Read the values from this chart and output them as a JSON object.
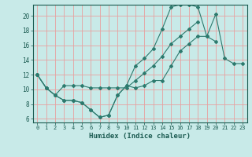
{
  "title": "",
  "xlabel": "Humidex (Indice chaleur)",
  "ylabel": "",
  "background_color": "#c8eae8",
  "grid_color": "#e8a0a0",
  "line_color": "#2d7a6e",
  "xlim": [
    -0.5,
    23.5
  ],
  "ylim": [
    5.5,
    21.5
  ],
  "xticks": [
    0,
    1,
    2,
    3,
    4,
    5,
    6,
    7,
    8,
    9,
    10,
    11,
    12,
    13,
    14,
    15,
    16,
    17,
    18,
    19,
    20,
    21,
    22,
    23
  ],
  "yticks": [
    6,
    8,
    10,
    12,
    14,
    16,
    18,
    20
  ],
  "series": [
    [
      12,
      10.2,
      9.2,
      8.5,
      8.5,
      8.2,
      7.2,
      6.2,
      6.5,
      9.2,
      10.5,
      10.2,
      10.5,
      11.2,
      11.2,
      13.2,
      15.2,
      16.2,
      17.2,
      17.2,
      20.2,
      14.2,
      13.5,
      13.5
    ],
    [
      12,
      10.2,
      9.2,
      8.5,
      8.5,
      8.2,
      7.2,
      6.2,
      6.5,
      9.2,
      10.5,
      13.2,
      14.2,
      15.5,
      18.2,
      21.2,
      21.5,
      21.5,
      21.2,
      17.2,
      16.5,
      null,
      null,
      null
    ],
    [
      12,
      10.2,
      9.2,
      10.5,
      10.5,
      10.5,
      10.2,
      10.2,
      10.2,
      10.2,
      10.2,
      11.2,
      12.2,
      13.2,
      14.5,
      16.2,
      17.2,
      18.2,
      19.2,
      null,
      null,
      null,
      null,
      null
    ]
  ]
}
